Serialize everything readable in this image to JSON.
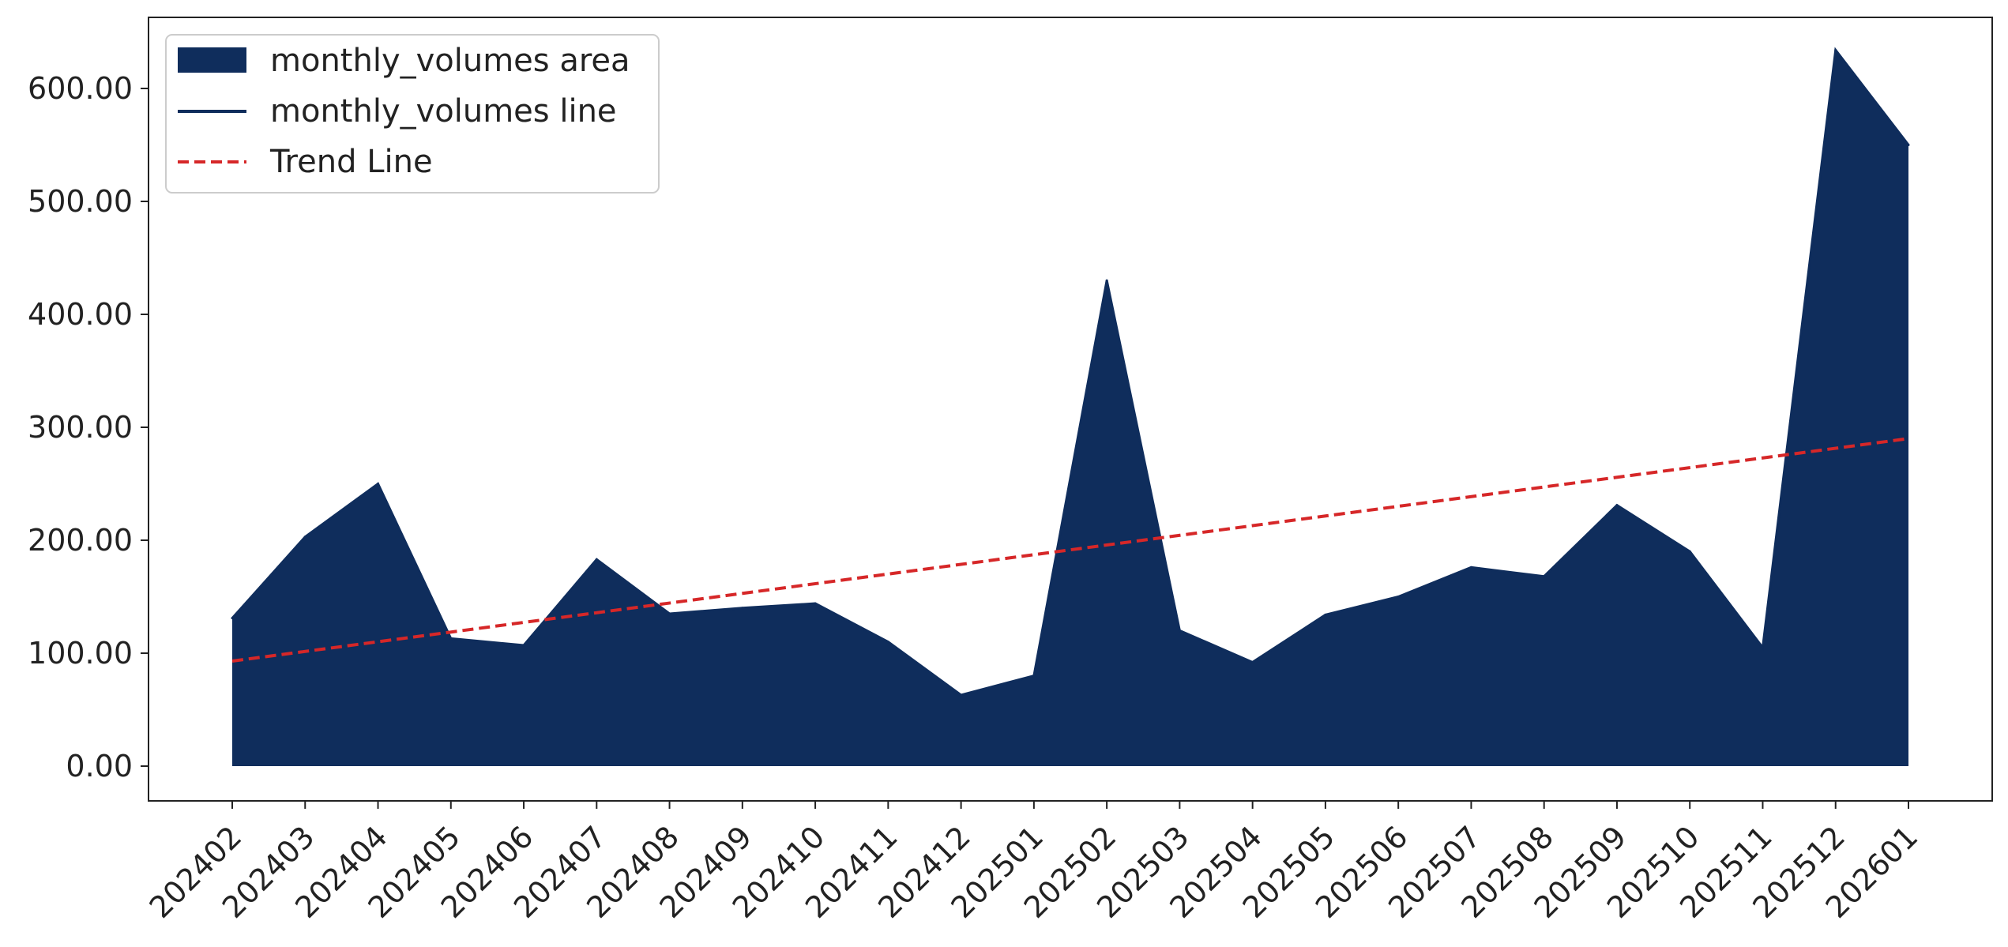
{
  "chart_data": {
    "type": "area",
    "title": "",
    "xlabel": "",
    "ylabel": "",
    "categories": [
      "202402",
      "202403",
      "202404",
      "202405",
      "202406",
      "202407",
      "202408",
      "202409",
      "202410",
      "202411",
      "202412",
      "202501",
      "202502",
      "202503",
      "202504",
      "202505",
      "202506",
      "202507",
      "202508",
      "202509",
      "202510",
      "202511",
      "202512",
      "202601"
    ],
    "series": [
      {
        "name": "monthly_volumes",
        "values": [
          131,
          203,
          250,
          113,
          107,
          183,
          135,
          140,
          144,
          110,
          63,
          80,
          430,
          120,
          92,
          134,
          150,
          176,
          168,
          231,
          190,
          105,
          634,
          550
        ],
        "color": "#0f2d5c"
      }
    ],
    "trend": {
      "name": "Trend Line",
      "start": 93,
      "end": 290,
      "color": "#d62728"
    },
    "ylim": [
      -30,
      665
    ],
    "yticks": [
      "0.00",
      "100.00",
      "200.00",
      "300.00",
      "400.00",
      "500.00",
      "600.00"
    ],
    "ytick_values": [
      0,
      100,
      200,
      300,
      400,
      500,
      600
    ],
    "legend": {
      "placement": "top-left",
      "entries": [
        "monthly_volumes area",
        "monthly_volumes line",
        "Trend Line"
      ]
    },
    "grid": false
  }
}
